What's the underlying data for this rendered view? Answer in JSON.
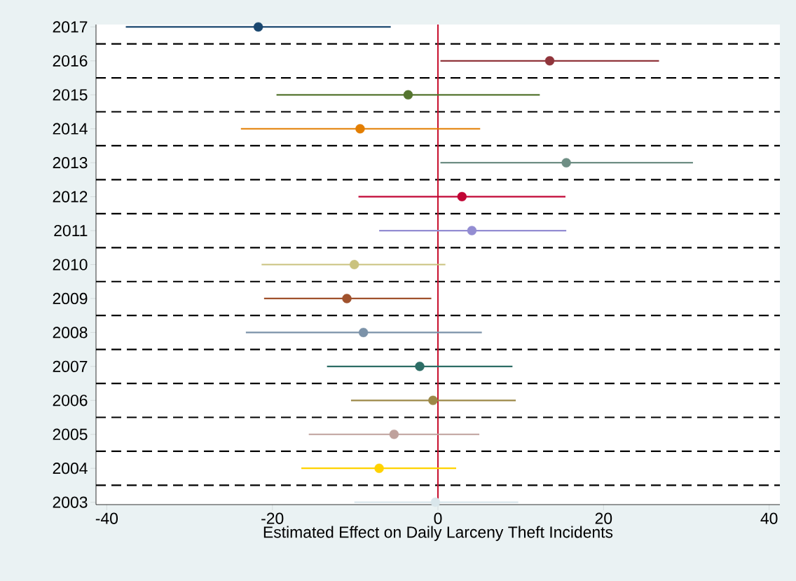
{
  "chart_data": {
    "type": "scatter",
    "orientation": "horizontal",
    "xlabel": "Estimated Effect on Daily Larceny Theft Incidents",
    "categories": [
      "2017",
      "2016",
      "2015",
      "2014",
      "2013",
      "2012",
      "2011",
      "2010",
      "2009",
      "2008",
      "2007",
      "2006",
      "2005",
      "2004",
      "2003"
    ],
    "values": [
      -21.7,
      13.5,
      -3.6,
      -9.4,
      15.5,
      2.9,
      4.1,
      -10.1,
      -11.0,
      -9.0,
      -2.2,
      -0.6,
      -5.3,
      -7.1,
      -0.3
    ],
    "errors": [
      [
        -37.7,
        -5.7
      ],
      [
        0.3,
        26.7
      ],
      [
        -19.5,
        12.3
      ],
      [
        -23.8,
        5.1
      ],
      [
        0.3,
        30.8
      ],
      [
        -9.6,
        15.4
      ],
      [
        -7.1,
        15.5
      ],
      [
        -21.3,
        0.9
      ],
      [
        -21.0,
        -0.8
      ],
      [
        -23.2,
        5.3
      ],
      [
        -13.4,
        9.0
      ],
      [
        -10.5,
        9.4
      ],
      [
        -15.6,
        5.0
      ],
      [
        -16.5,
        2.2
      ],
      [
        -10.1,
        9.7
      ]
    ],
    "colors": [
      "#1a476f",
      "#90353b",
      "#55752f",
      "#e37e00",
      "#6e8e84",
      "#c10534",
      "#938dd2",
      "#cac27e",
      "#a0522d",
      "#7b92a8",
      "#2d6d66",
      "#9c8847",
      "#bfa19c",
      "#ffd200",
      "#d9e6eb"
    ],
    "xlim": [
      -41.3,
      41.3
    ],
    "xticks": [
      -40,
      -20,
      0,
      20,
      40
    ],
    "ref_lines": [
      {
        "axis": "x",
        "value": 0,
        "color": "#c8102e"
      }
    ],
    "grid": "y",
    "marker": "circle"
  }
}
